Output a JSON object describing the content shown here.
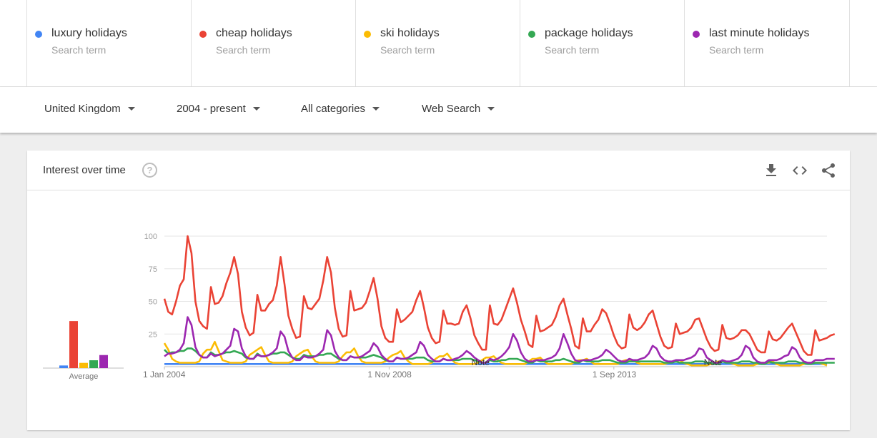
{
  "terms": [
    {
      "name": "luxury holidays",
      "type": "Search term",
      "color": "#4285f4"
    },
    {
      "name": "cheap holidays",
      "type": "Search term",
      "color": "#ea4335"
    },
    {
      "name": "ski holidays",
      "type": "Search term",
      "color": "#fbbc04"
    },
    {
      "name": "package holidays",
      "type": "Search term",
      "color": "#34a853"
    },
    {
      "name": "last minute holidays",
      "type": "Search term",
      "color": "#9c27b0"
    }
  ],
  "filters": {
    "region": "United Kingdom",
    "period": "2004 - present",
    "category": "All categories",
    "property": "Web Search"
  },
  "card": {
    "title": "Interest over time",
    "help_icon": "help-circle-icon",
    "actions": [
      "download-icon",
      "embed-code-icon",
      "share-icon"
    ]
  },
  "chart_data": {
    "type": "line",
    "ylim": [
      0,
      100
    ],
    "yticks": [
      100,
      75,
      50,
      25
    ],
    "x_tick_labels": [
      "1 Jan 2004",
      "1 Nov 2008",
      "1 Sep 2013"
    ],
    "x_tick_indices": [
      0,
      58,
      116
    ],
    "note_label": "Note",
    "note_indices": [
      82,
      142
    ],
    "average_label": "Average",
    "averages": [
      {
        "name": "luxury holidays",
        "value": 2,
        "color": "#4285f4"
      },
      {
        "name": "cheap holidays",
        "value": 36,
        "color": "#ea4335"
      },
      {
        "name": "ski holidays",
        "value": 4,
        "color": "#fbbc04"
      },
      {
        "name": "package holidays",
        "value": 6,
        "color": "#34a853"
      },
      {
        "name": "last minute holidays",
        "value": 10,
        "color": "#9c27b0"
      }
    ],
    "series_count": 5,
    "points_per_series": 172,
    "series": [
      {
        "name": "luxury holidays",
        "color": "#4285f4",
        "values": [
          2,
          2,
          2,
          2,
          2,
          2,
          2,
          2,
          2,
          2,
          2,
          2,
          2,
          2,
          2,
          2,
          2,
          2,
          2,
          2,
          2,
          2,
          2,
          2,
          2,
          2,
          2,
          2,
          2,
          2,
          2,
          2,
          2,
          2,
          2,
          2,
          2,
          2,
          2,
          2,
          2,
          2,
          2,
          2,
          2,
          2,
          2,
          2,
          2,
          2,
          2,
          2,
          2,
          2,
          2,
          2,
          2,
          2,
          2,
          2,
          2,
          2,
          2,
          2,
          2,
          2,
          2,
          2,
          2,
          2,
          2,
          2,
          2,
          2,
          2,
          2,
          2,
          2,
          2,
          2,
          2,
          2,
          2,
          2,
          2,
          2,
          2,
          2,
          2,
          2,
          2,
          2,
          2,
          2,
          2,
          2,
          2,
          2,
          2,
          2,
          2,
          2,
          2,
          2,
          2,
          2,
          2,
          2,
          2,
          2,
          2,
          2,
          2,
          2,
          2,
          2,
          2,
          2,
          2,
          2,
          2,
          2,
          2,
          2,
          2,
          2,
          2,
          2,
          2,
          2,
          2,
          2,
          2,
          2,
          2,
          2,
          2,
          2,
          2,
          2,
          2,
          2,
          2,
          2,
          2,
          2,
          2,
          2,
          2,
          2,
          2,
          2,
          2,
          2,
          2,
          2,
          2,
          2,
          2,
          2,
          2,
          2,
          2,
          2,
          2,
          2,
          2,
          2,
          2,
          2,
          2,
          2
        ]
      },
      {
        "name": "cheap holidays",
        "color": "#ea4335",
        "values": [
          52,
          42,
          40,
          50,
          62,
          67,
          100,
          87,
          50,
          35,
          31,
          29,
          61,
          48,
          49,
          54,
          64,
          72,
          84,
          71,
          42,
          30,
          24,
          26,
          55,
          43,
          43,
          48,
          51,
          62,
          84,
          63,
          39,
          29,
          22,
          23,
          54,
          45,
          44,
          48,
          52,
          66,
          84,
          72,
          45,
          29,
          23,
          24,
          58,
          43,
          44,
          45,
          49,
          58,
          68,
          52,
          31,
          22,
          19,
          19,
          44,
          34,
          36,
          39,
          42,
          51,
          58,
          45,
          30,
          22,
          18,
          19,
          43,
          33,
          33,
          32,
          33,
          42,
          47,
          37,
          24,
          18,
          13,
          13,
          47,
          33,
          32,
          36,
          44,
          52,
          60,
          49,
          36,
          27,
          17,
          15,
          39,
          27,
          28,
          30,
          32,
          38,
          47,
          52,
          40,
          29,
          16,
          14,
          37,
          27,
          27,
          32,
          36,
          44,
          41,
          33,
          24,
          17,
          14,
          15,
          40,
          30,
          28,
          30,
          34,
          40,
          43,
          33,
          23,
          16,
          14,
          15,
          33,
          25,
          26,
          27,
          30,
          36,
          37,
          29,
          21,
          15,
          12,
          13,
          32,
          22,
          21,
          22,
          24,
          28,
          28,
          25,
          19,
          13,
          11,
          11,
          27,
          21,
          20,
          22,
          26,
          30,
          33,
          26,
          19,
          12,
          9,
          9,
          28,
          20,
          21,
          22,
          24,
          25
        ]
      },
      {
        "name": "ski holidays",
        "color": "#fbbc04",
        "values": [
          18,
          13,
          6,
          4,
          3,
          3,
          3,
          3,
          3,
          4,
          10,
          13,
          13,
          19,
          12,
          5,
          4,
          3,
          3,
          3,
          3,
          4,
          9,
          11,
          13,
          15,
          9,
          4,
          3,
          3,
          3,
          3,
          3,
          4,
          8,
          10,
          12,
          13,
          8,
          4,
          3,
          3,
          3,
          3,
          3,
          4,
          8,
          11,
          11,
          14,
          8,
          4,
          3,
          3,
          3,
          3,
          3,
          4,
          7,
          9,
          10,
          12,
          7,
          4,
          2,
          2,
          2,
          2,
          2,
          3,
          6,
          8,
          8,
          10,
          6,
          3,
          2,
          2,
          2,
          2,
          2,
          3,
          5,
          7,
          7,
          8,
          5,
          3,
          2,
          2,
          2,
          2,
          2,
          2,
          4,
          6,
          6,
          7,
          4,
          2,
          2,
          2,
          2,
          2,
          2,
          2,
          4,
          5,
          5,
          6,
          4,
          2,
          2,
          2,
          2,
          2,
          2,
          2,
          4,
          5,
          5,
          5,
          3,
          2,
          2,
          2,
          2,
          2,
          2,
          2,
          3,
          4,
          4,
          5,
          3,
          2,
          1,
          1,
          1,
          1,
          1,
          2,
          3,
          4,
          4,
          4,
          3,
          2,
          1,
          1,
          1,
          1,
          1,
          2,
          3,
          3,
          3,
          4,
          2,
          1,
          1,
          1,
          1,
          1,
          1,
          2,
          3,
          3,
          3,
          3,
          2,
          1
        ]
      },
      {
        "name": "package holidays",
        "color": "#34a853",
        "values": [
          13,
          10,
          11,
          11,
          12,
          12,
          14,
          14,
          12,
          9,
          7,
          7,
          11,
          9,
          9,
          10,
          11,
          11,
          12,
          11,
          10,
          7,
          6,
          6,
          10,
          8,
          8,
          9,
          10,
          10,
          11,
          11,
          9,
          7,
          6,
          6,
          9,
          8,
          8,
          8,
          9,
          9,
          10,
          10,
          8,
          6,
          5,
          5,
          8,
          7,
          7,
          7,
          7,
          8,
          9,
          8,
          7,
          5,
          4,
          4,
          7,
          6,
          6,
          6,
          6,
          7,
          7,
          7,
          5,
          4,
          4,
          4,
          6,
          5,
          5,
          5,
          5,
          6,
          6,
          6,
          5,
          4,
          3,
          3,
          5,
          4,
          4,
          5,
          5,
          6,
          6,
          6,
          5,
          4,
          3,
          3,
          5,
          4,
          4,
          4,
          4,
          5,
          5,
          6,
          5,
          4,
          3,
          3,
          5,
          4,
          4,
          4,
          4,
          5,
          5,
          5,
          4,
          3,
          3,
          3,
          4,
          4,
          4,
          4,
          4,
          4,
          4,
          4,
          4,
          3,
          3,
          3,
          4,
          3,
          3,
          3,
          3,
          4,
          4,
          4,
          3,
          3,
          2,
          2,
          4,
          3,
          3,
          3,
          3,
          4,
          4,
          4,
          3,
          3,
          2,
          2,
          4,
          3,
          3,
          3,
          3,
          4,
          4,
          4,
          3,
          3,
          2,
          2,
          3,
          3,
          3,
          3,
          3,
          3
        ]
      },
      {
        "name": "last minute holidays",
        "color": "#9c27b0",
        "values": [
          8,
          10,
          10,
          11,
          13,
          18,
          38,
          32,
          15,
          9,
          7,
          7,
          10,
          8,
          9,
          10,
          13,
          16,
          29,
          27,
          14,
          8,
          6,
          6,
          9,
          8,
          8,
          9,
          11,
          14,
          27,
          23,
          12,
          7,
          5,
          5,
          8,
          7,
          7,
          8,
          10,
          13,
          28,
          24,
          12,
          7,
          5,
          5,
          8,
          7,
          7,
          8,
          10,
          12,
          18,
          15,
          9,
          6,
          4,
          4,
          7,
          6,
          6,
          7,
          9,
          11,
          19,
          16,
          9,
          6,
          4,
          4,
          6,
          5,
          5,
          6,
          7,
          9,
          12,
          10,
          7,
          5,
          3,
          3,
          6,
          5,
          6,
          8,
          11,
          15,
          25,
          20,
          11,
          6,
          4,
          4,
          5,
          5,
          5,
          6,
          7,
          9,
          14,
          25,
          18,
          10,
          5,
          4,
          5,
          5,
          5,
          6,
          7,
          9,
          13,
          11,
          8,
          5,
          4,
          4,
          6,
          5,
          5,
          6,
          7,
          10,
          16,
          14,
          8,
          5,
          4,
          4,
          5,
          5,
          5,
          6,
          7,
          9,
          14,
          13,
          7,
          5,
          3,
          3,
          5,
          4,
          4,
          5,
          6,
          9,
          16,
          14,
          7,
          4,
          3,
          3,
          5,
          5,
          5,
          6,
          8,
          9,
          15,
          13,
          7,
          4,
          3,
          3,
          5,
          5,
          5,
          6,
          6,
          6
        ]
      }
    ]
  }
}
